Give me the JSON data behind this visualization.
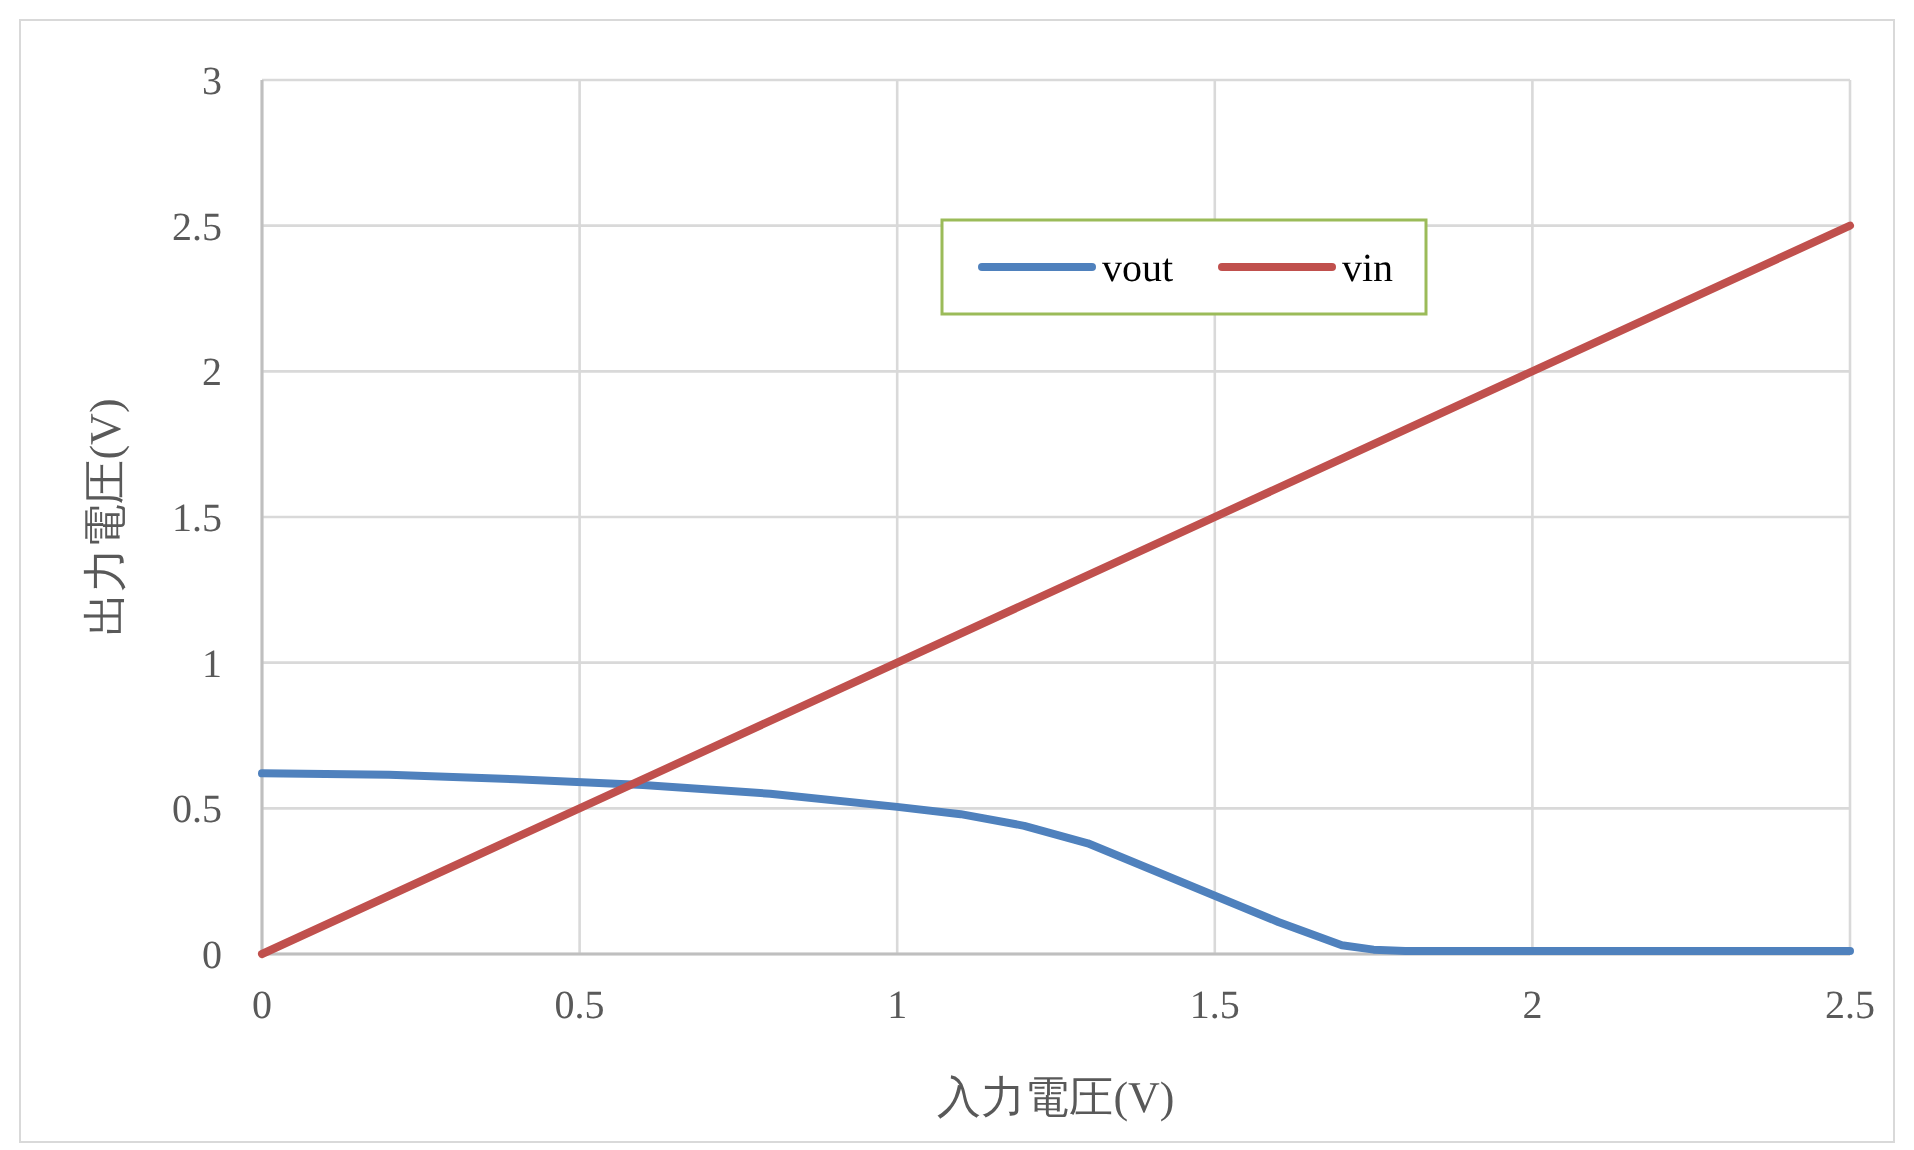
{
  "chart_data": {
    "type": "line",
    "xlabel": "入力電圧(V)",
    "ylabel": "出力電圧(V)",
    "xlim": [
      0,
      2.5
    ],
    "xticks": [
      0,
      0.5,
      1,
      1.5,
      2,
      2.5
    ],
    "ylim": [
      0,
      3
    ],
    "yticks": [
      0,
      0.5,
      1,
      1.5,
      2,
      2.5,
      3
    ],
    "grid": true,
    "legend": "top",
    "marker": "none",
    "line_style": "solid",
    "series": [
      {
        "name": "vout",
        "color": "#4f81bd",
        "x": [
          0,
          0.2,
          0.4,
          0.6,
          0.8,
          1,
          1.1,
          1.2,
          1.3,
          1.4,
          1.5,
          1.6,
          1.7,
          1.75,
          1.8,
          2,
          2.5
        ],
        "values": [
          0.62,
          0.615,
          0.6,
          0.58,
          0.55,
          0.505,
          0.48,
          0.44,
          0.38,
          0.29,
          0.2,
          0.11,
          0.03,
          0.015,
          0.01,
          0.01,
          0.01
        ]
      },
      {
        "name": "vin",
        "color": "#c0504d",
        "x": [
          0,
          2.5
        ],
        "values": [
          0,
          2.5
        ]
      }
    ]
  }
}
